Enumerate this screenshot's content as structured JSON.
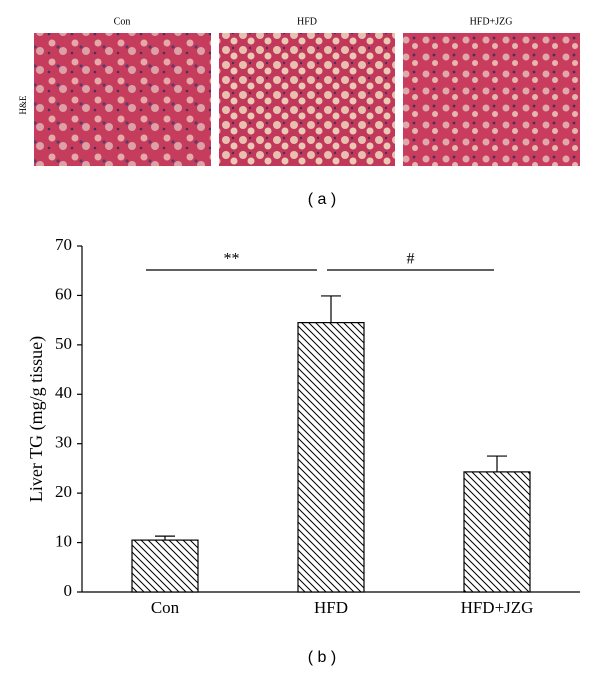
{
  "panel_a": {
    "labels": [
      "Con",
      "HFD",
      "HFD+JZG"
    ],
    "stain": "H&E",
    "caption": "( a )"
  },
  "chart_data": {
    "type": "bar",
    "ylabel": "Liver TG (mg/g tissue)",
    "categories": [
      "Con",
      "HFD",
      "HFD+JZG"
    ],
    "values": [
      10.5,
      54.5,
      24.3
    ],
    "errors": [
      0.8,
      5.4,
      3.2
    ],
    "color": "#000000",
    "ylim": [
      0,
      70
    ],
    "yticks": [
      0,
      10,
      20,
      30,
      40,
      50,
      60,
      70
    ],
    "annotations": [
      {
        "text": "**"
      },
      {
        "text": "#"
      }
    ]
  },
  "caption_b": "( b )"
}
